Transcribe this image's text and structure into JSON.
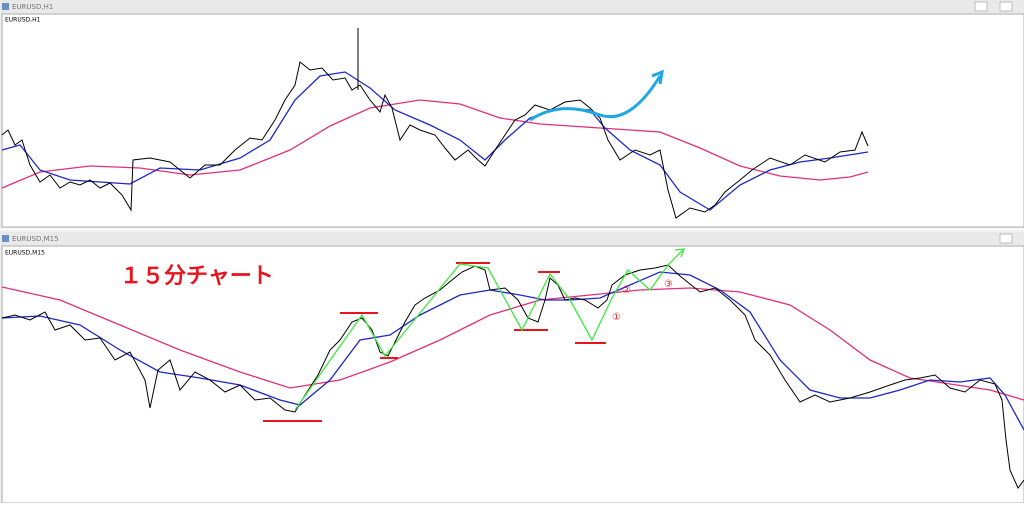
{
  "windows": [
    {
      "title": "EURUSD,H1",
      "label": "EURUSD,H1"
    },
    {
      "title": "EURUSD,M15",
      "label": "EURUSD,M15"
    }
  ],
  "annotations": {
    "heading": "１５分チャート",
    "markers": [
      "①",
      "②",
      "③"
    ]
  }
}
